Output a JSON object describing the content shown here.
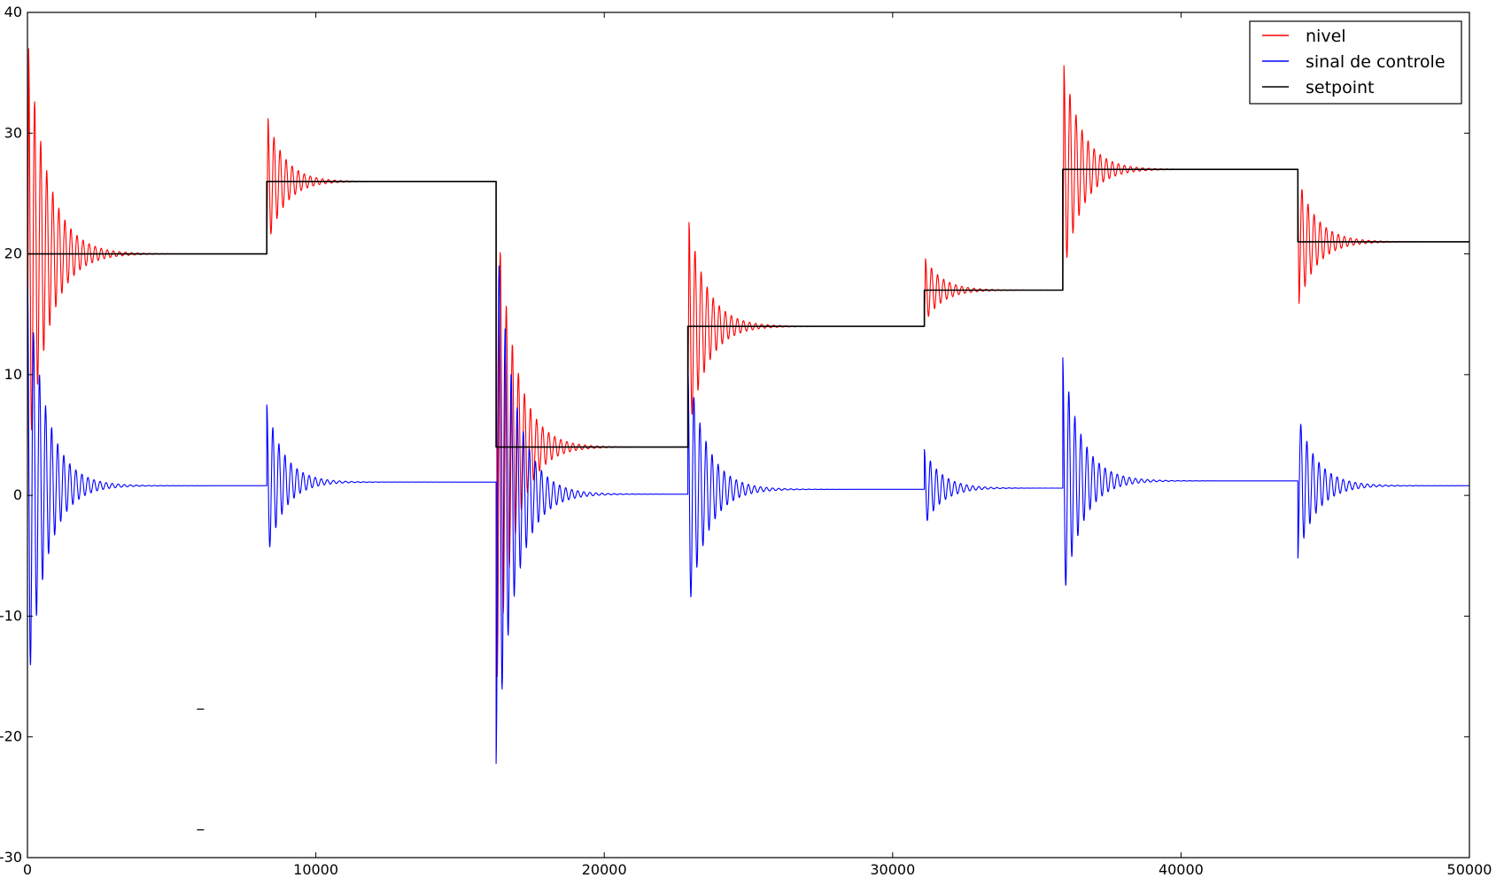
{
  "chart_data": {
    "type": "line",
    "title": "",
    "xlabel": "",
    "ylabel": "",
    "xlim": [
      0,
      50000
    ],
    "ylim": [
      -30,
      40
    ],
    "xticks": [
      0,
      10000,
      20000,
      30000,
      40000,
      50000
    ],
    "yticks": [
      -30,
      -20,
      -10,
      0,
      10,
      20,
      30,
      40
    ],
    "xtick_labels": [
      "0",
      "10000",
      "20000",
      "30000",
      "40000",
      "50000"
    ],
    "ytick_labels": [
      "-30",
      "-20",
      "-10",
      "0",
      "10",
      "20",
      "30",
      "40"
    ],
    "grid": false,
    "legend_position": "top-right",
    "series": [
      {
        "name": "nivel",
        "color": "#ff0000",
        "kind": "step-response",
        "start_value": 5,
        "segments": [
          {
            "t0": 0,
            "t1": 8300,
            "from": 5,
            "target": 20,
            "first_peak": 37,
            "period": 210,
            "tau": 700
          },
          {
            "t0": 8300,
            "t1": 16250,
            "from": 20,
            "target": 26,
            "first_peak": 31.2,
            "period": 210,
            "tau": 600
          },
          {
            "t0": 16250,
            "t1": 22900,
            "from": 26,
            "target": 4,
            "first_peak": -15,
            "period": 210,
            "tau": 650
          },
          {
            "t0": 22900,
            "t1": 31100,
            "from": 4,
            "target": 14,
            "first_peak": 22.6,
            "period": 210,
            "tau": 650
          },
          {
            "t0": 31100,
            "t1": 35900,
            "from": 14,
            "target": 17,
            "first_peak": 19.6,
            "period": 210,
            "tau": 600
          },
          {
            "t0": 35900,
            "t1": 44050,
            "from": 17,
            "target": 27,
            "first_peak": 35.6,
            "period": 210,
            "tau": 650
          },
          {
            "t0": 44050,
            "t1": 50000,
            "from": 27,
            "target": 21,
            "first_peak": 15.9,
            "period": 210,
            "tau": 650
          }
        ]
      },
      {
        "name": "sinal de controle",
        "color": "#0000ff",
        "kind": "control-signal",
        "segments": [
          {
            "t0": 0,
            "t1": 8300,
            "steady": 0.8,
            "amp": 17.5,
            "period": 210,
            "tau": 650
          },
          {
            "t0": 8300,
            "t1": 16250,
            "steady": 1.1,
            "amp": 6.4,
            "period": 210,
            "tau": 600
          },
          {
            "t0": 16250,
            "t1": 22900,
            "steady": 0.1,
            "amp": -22.3,
            "period": 210,
            "tau": 650
          },
          {
            "t0": 22900,
            "t1": 31100,
            "steady": 0.5,
            "amp": 10.5,
            "period": 210,
            "tau": 650
          },
          {
            "t0": 31100,
            "t1": 35900,
            "steady": 0.6,
            "amp": 3.2,
            "period": 210,
            "tau": 600
          },
          {
            "t0": 35900,
            "t1": 44050,
            "steady": 1.2,
            "amp": 10.2,
            "period": 210,
            "tau": 650
          },
          {
            "t0": 44050,
            "t1": 50000,
            "steady": 0.8,
            "amp": -6.0,
            "period": 210,
            "tau": 650
          }
        ]
      },
      {
        "name": "setpoint",
        "color": "#000000",
        "kind": "step",
        "x": [
          0,
          8300,
          8300,
          16250,
          16250,
          22900,
          22900,
          31100,
          31100,
          35900,
          35900,
          44050,
          44050,
          50000
        ],
        "y": [
          20,
          20,
          26,
          26,
          4,
          4,
          14,
          14,
          17,
          17,
          27,
          27,
          21,
          21
        ]
      }
    ],
    "markers": [
      {
        "x": 6000,
        "y": -17.7
      },
      {
        "x": 6000,
        "y": -27.7
      }
    ]
  }
}
